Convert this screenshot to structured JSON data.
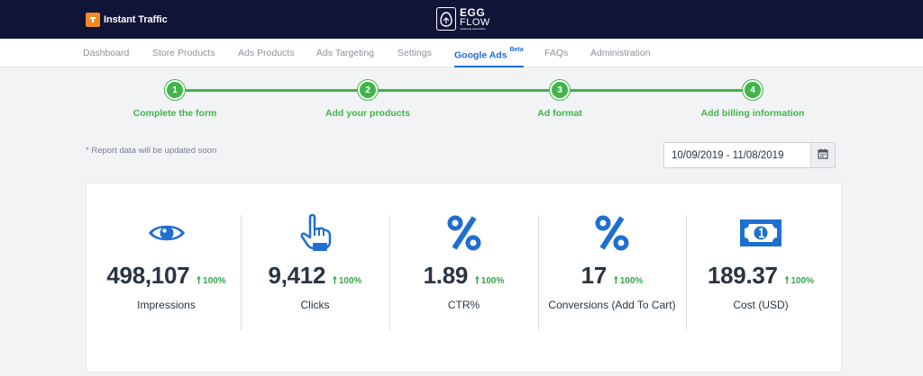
{
  "header": {
    "app_name": "Instant Traffic",
    "logo": {
      "line1": "EGG",
      "line2": "FLOW",
      "tagline": "marketing automation"
    }
  },
  "nav": {
    "items": [
      {
        "label": "Dashboard"
      },
      {
        "label": "Store Products"
      },
      {
        "label": "Ads Products"
      },
      {
        "label": "Ads Targeting"
      },
      {
        "label": "Settings"
      },
      {
        "label": "Google Ads",
        "badge": "Beta",
        "active": true
      },
      {
        "label": "FAQs"
      },
      {
        "label": "Administration"
      }
    ]
  },
  "steps": [
    {
      "number": "1",
      "label": "Complete the form"
    },
    {
      "number": "2",
      "label": "Add your products"
    },
    {
      "number": "3",
      "label": "Ad format"
    },
    {
      "number": "4",
      "label": "Add billing information"
    }
  ],
  "report_note": "* Report data will be updated soon",
  "date_range": {
    "value": "10/09/2019 - 11/08/2019",
    "icon": "calendar-icon"
  },
  "stats": [
    {
      "icon": "eye-icon",
      "value": "498,107",
      "change": "100%",
      "label": "Impressions"
    },
    {
      "icon": "pointer-hand-icon",
      "value": "9,412",
      "change": "100%",
      "label": "Clicks"
    },
    {
      "icon": "percent-icon",
      "value": "1.89",
      "change": "100%",
      "label": "CTR%"
    },
    {
      "icon": "percent-icon",
      "value": "17",
      "change": "100%",
      "label": "Conversions (Add To Cart)"
    },
    {
      "icon": "banknote-icon",
      "value": "189.37",
      "change": "100%",
      "label": "Cost (USD)"
    }
  ],
  "colors": {
    "header_bg": "#101437",
    "accent_blue": "#1f6fd1",
    "step_green": "#40b54a",
    "up_green": "#36a54a",
    "brand_orange": "#f28a23"
  }
}
